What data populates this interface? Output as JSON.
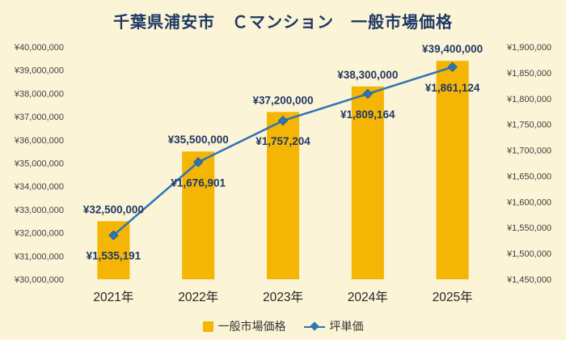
{
  "chart_data": {
    "type": "bar+line",
    "title": "千葉県浦安市　Ｃマンション　一般市場価格",
    "categories": [
      "2021年",
      "2022年",
      "2023年",
      "2024年",
      "2025年"
    ],
    "series": [
      {
        "name": "一般市場価格",
        "type": "bar",
        "axis": "left",
        "values": [
          32500000,
          35500000,
          37200000,
          38300000,
          39400000
        ],
        "labels": [
          "¥32,500,000",
          "¥35,500,000",
          "¥37,200,000",
          "¥38,300,000",
          "¥39,400,000"
        ]
      },
      {
        "name": "坪単価",
        "type": "line",
        "axis": "right",
        "values": [
          1535191,
          1676901,
          1757204,
          1809164,
          1861124
        ],
        "labels": [
          "¥1,535,191",
          "¥1,676,901",
          "¥1,757,204",
          "¥1,809,164",
          "¥1,861,124"
        ]
      }
    ],
    "left_axis": {
      "min": 30000000,
      "max": 40000000,
      "step": 1000000,
      "ticks": [
        "¥30,000,000",
        "¥31,000,000",
        "¥32,000,000",
        "¥33,000,000",
        "¥34,000,000",
        "¥35,000,000",
        "¥36,000,000",
        "¥37,000,000",
        "¥38,000,000",
        "¥39,000,000",
        "¥40,000,000"
      ]
    },
    "right_axis": {
      "min": 1450000,
      "max": 1900000,
      "step": 50000,
      "ticks": [
        "¥1,450,000",
        "¥1,500,000",
        "¥1,550,000",
        "¥1,600,000",
        "¥1,650,000",
        "¥1,700,000",
        "¥1,750,000",
        "¥1,800,000",
        "¥1,850,000",
        "¥1,900,000"
      ]
    },
    "legend_position": "bottom",
    "grid": false
  },
  "colors": {
    "background": "#FCF4D6",
    "bar": "#F4B504",
    "line": "#2E75B6",
    "marker_stroke": "#255E94",
    "data_label": "#1F3864",
    "axis_text": "#404040",
    "category_text": "#262626",
    "title": "#1F3864"
  }
}
